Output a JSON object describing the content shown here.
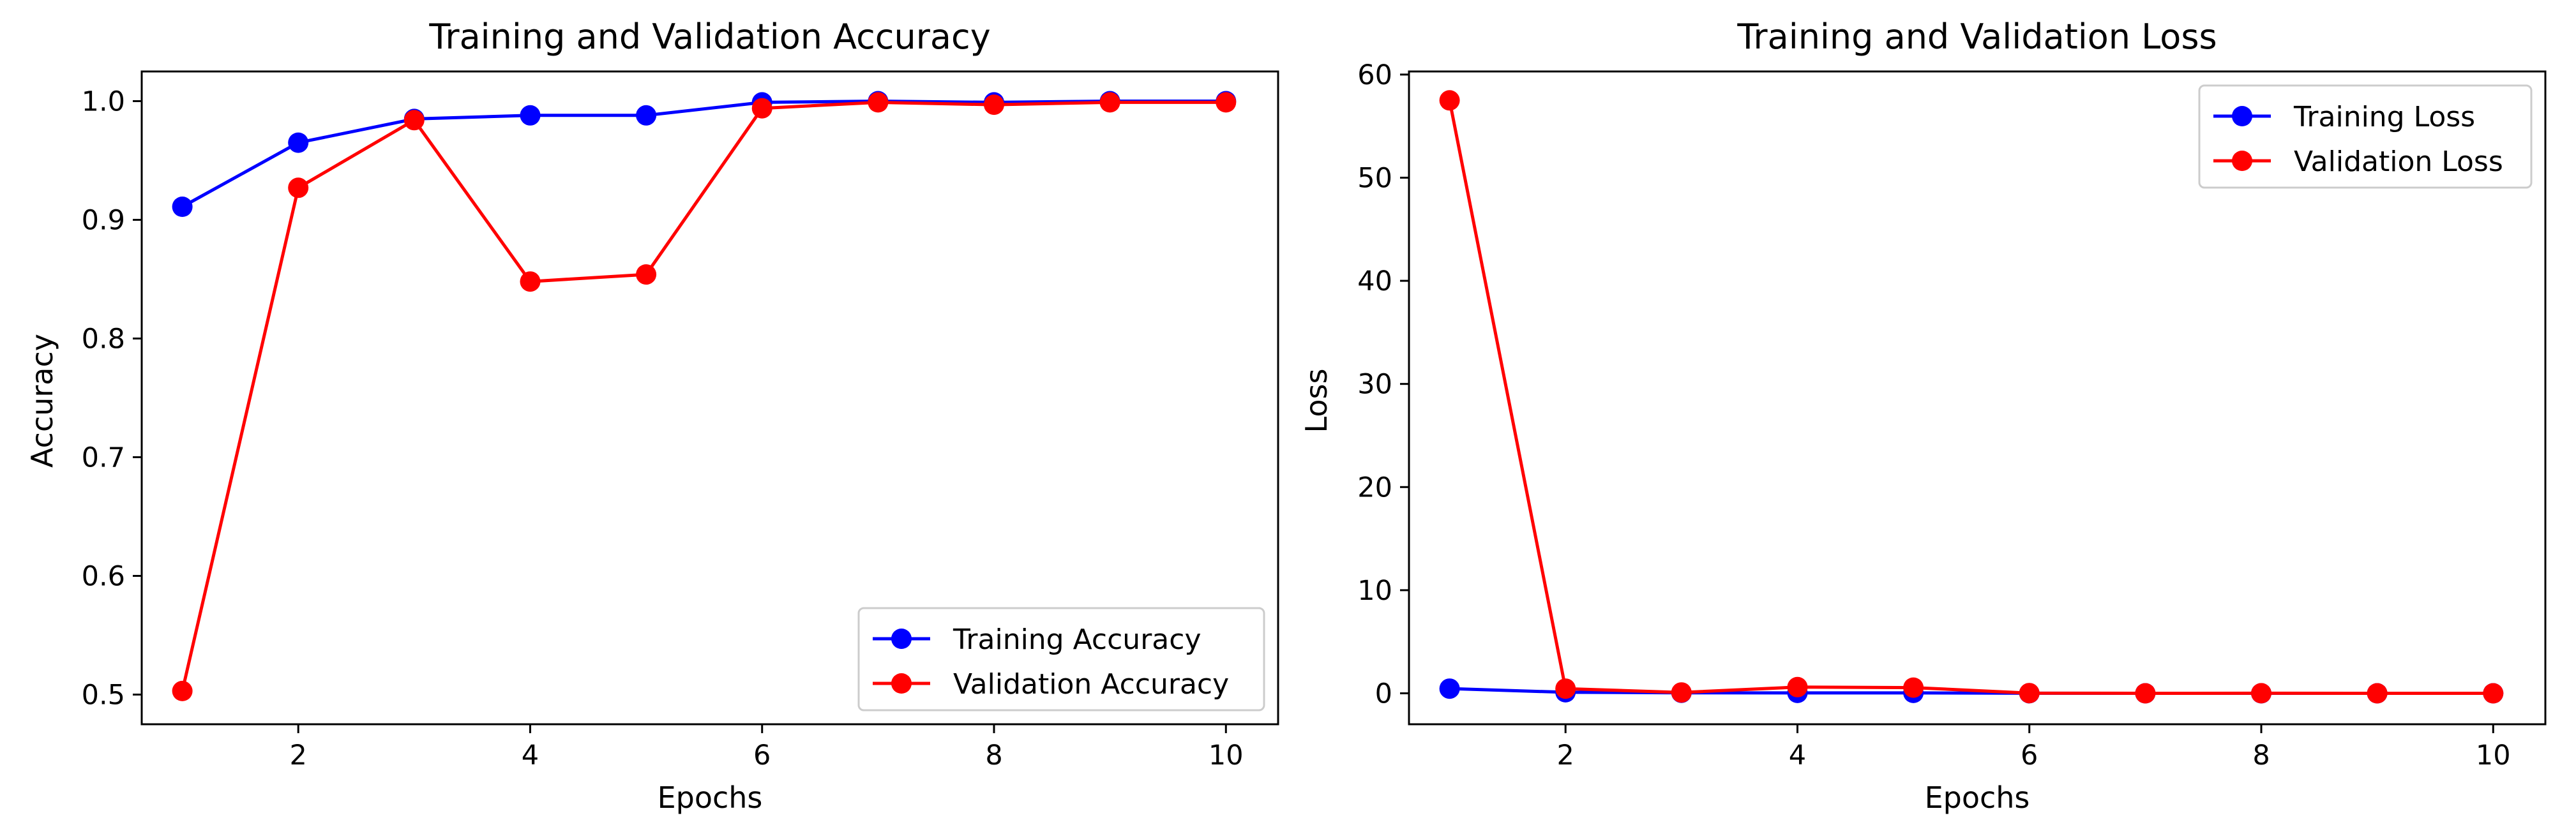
{
  "chart_data": [
    {
      "type": "line",
      "title": "Training and Validation Accuracy",
      "xlabel": "Epochs",
      "ylabel": "Accuracy",
      "x": [
        1,
        2,
        3,
        4,
        5,
        6,
        7,
        8,
        9,
        10
      ],
      "xlim": [
        0.65,
        10.45
      ],
      "ylim": [
        0.475,
        1.025
      ],
      "xticks": [
        2,
        4,
        6,
        8,
        10
      ],
      "yticks": [
        0.5,
        0.6,
        0.7,
        0.8,
        0.9,
        1.0
      ],
      "ytick_labels": [
        "0.5",
        "0.6",
        "0.7",
        "0.8",
        "0.9",
        "1.0"
      ],
      "grid": false,
      "legend_position": "lower right",
      "series": [
        {
          "name": "Training Accuracy",
          "color": "#0000ff",
          "values": [
            0.911,
            0.965,
            0.985,
            0.988,
            0.988,
            0.999,
            1.0,
            0.999,
            1.0,
            1.0
          ]
        },
        {
          "name": "Validation Accuracy",
          "color": "#ff0000",
          "values": [
            0.503,
            0.927,
            0.984,
            0.848,
            0.854,
            0.994,
            0.999,
            0.997,
            0.999,
            0.999
          ]
        }
      ]
    },
    {
      "type": "line",
      "title": "Training and Validation Loss",
      "xlabel": "Epochs",
      "ylabel": "Loss",
      "x": [
        1,
        2,
        3,
        4,
        5,
        6,
        7,
        8,
        9,
        10
      ],
      "xlim": [
        0.65,
        10.45
      ],
      "ylim": [
        -3,
        60.3
      ],
      "xticks": [
        2,
        4,
        6,
        8,
        10
      ],
      "yticks": [
        0,
        10,
        20,
        30,
        40,
        50,
        60
      ],
      "ytick_labels": [
        "0",
        "10",
        "20",
        "30",
        "40",
        "50",
        "60"
      ],
      "grid": false,
      "legend_position": "upper right",
      "series": [
        {
          "name": "Training Loss",
          "color": "#0000ff",
          "values": [
            0.45,
            0.1,
            0.05,
            0.04,
            0.04,
            0.01,
            0.0,
            0.0,
            0.0,
            0.0
          ]
        },
        {
          "name": "Validation Loss",
          "color": "#ff0000",
          "values": [
            57.5,
            0.45,
            0.08,
            0.6,
            0.55,
            0.02,
            0.0,
            0.01,
            0.0,
            0.0
          ]
        }
      ]
    }
  ]
}
